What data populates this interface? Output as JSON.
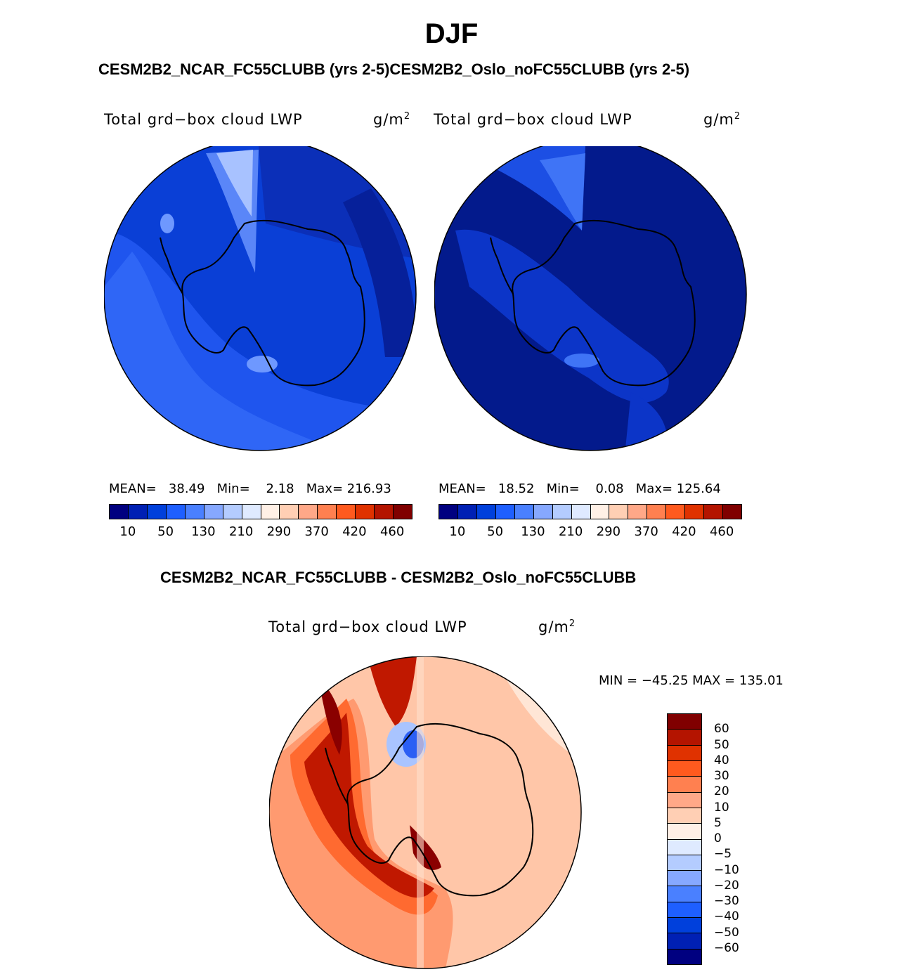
{
  "figure": {
    "season": "DJF",
    "top_subtitle": "CESM2B2_NCAR_FC55CLUBB (yrs 2-5)CESM2B2_Oslo_noFC55CLUBB (yrs 2-5)",
    "diff_subtitle": "CESM2B2_NCAR_FC55CLUBB - CESM2B2_Oslo_noFC55CLUBB"
  },
  "panel_left": {
    "variable": "Total grd−box cloud LWP",
    "units_base": "g/m",
    "units_exp": "2",
    "stats": "MEAN=   38.49   Min=    2.18   Max= 216.93",
    "colorbar_ticks": [
      "10",
      "50",
      "130",
      "210",
      "290",
      "370",
      "420",
      "460"
    ]
  },
  "panel_right": {
    "variable": "Total grd−box cloud LWP",
    "units_base": "g/m",
    "units_exp": "2",
    "stats": "MEAN=   18.52   Min=    0.08   Max= 125.64",
    "colorbar_ticks": [
      "10",
      "50",
      "130",
      "210",
      "290",
      "370",
      "420",
      "460"
    ]
  },
  "panel_diff": {
    "variable": "Total grd−box cloud LWP",
    "units_base": "g/m",
    "units_exp": "2",
    "minmax": "MIN = −45.25 MAX = 135.01",
    "colorbar_labels": [
      "60",
      "50",
      "40",
      "30",
      "20",
      "10",
      "5",
      "0",
      "−5",
      "−10",
      "−20",
      "−30",
      "−40",
      "−50",
      "−60"
    ]
  },
  "colors": {
    "abs_scale": [
      "#000080",
      "#0020b4",
      "#0040dc",
      "#1e5fff",
      "#4a80ff",
      "#86a8ff",
      "#b4ccff",
      "#dfeaff",
      "#fff0e6",
      "#ffcfb4",
      "#ffa888",
      "#ff8050",
      "#ff5a1e",
      "#e03200",
      "#b41400",
      "#800000"
    ],
    "diff_scale": [
      "#800000",
      "#b41400",
      "#e03200",
      "#ff5a1e",
      "#ff8050",
      "#ffa888",
      "#ffcfb4",
      "#fff0e6",
      "#dfeaff",
      "#b4ccff",
      "#86a8ff",
      "#4a80ff",
      "#1e5fff",
      "#0040dc",
      "#0020b4",
      "#000080"
    ]
  }
}
